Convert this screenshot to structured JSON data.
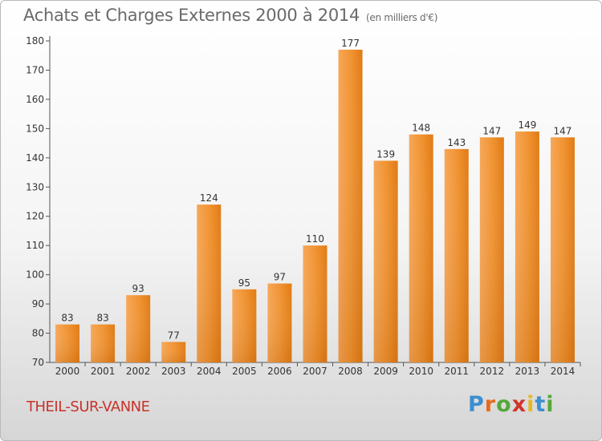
{
  "chart_data": {
    "type": "bar",
    "title": "Achats et Charges Externes 2000 à 2014",
    "unit_note": "(en milliers d'€)",
    "categories": [
      "2000",
      "2001",
      "2002",
      "2003",
      "2004",
      "2005",
      "2006",
      "2007",
      "2008",
      "2009",
      "2010",
      "2011",
      "2012",
      "2013",
      "2014"
    ],
    "values": [
      83,
      83,
      93,
      77,
      124,
      95,
      97,
      110,
      177,
      139,
      148,
      143,
      147,
      149,
      147
    ],
    "ylim": [
      70,
      180
    ],
    "yticks": [
      70,
      80,
      90,
      100,
      110,
      120,
      130,
      140,
      150,
      160,
      170,
      180
    ],
    "grid": false,
    "bar_color": "#f0912e"
  },
  "footer": {
    "city": "THEIL-SUR-VANNE",
    "logo_letters": [
      "P",
      "r",
      "o",
      "x",
      "i",
      "t",
      "i"
    ],
    "logo_colors": [
      "#3b8fd0",
      "#e86a1e",
      "#55a83a",
      "#d0342c",
      "#e8b81e",
      "#3b8fd0",
      "#55a83a"
    ]
  }
}
